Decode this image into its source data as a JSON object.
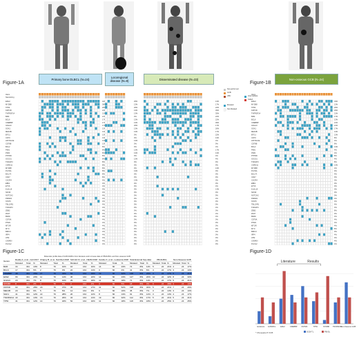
{
  "figure_labels": {
    "a": "Figure-1A",
    "b": "Figure-1B",
    "c": "Figure-1C",
    "d": "Figure-1D"
  },
  "groups": {
    "primary": "Primary bone DLBCL (N=24)",
    "locoregional": "Locoregional disease (N=8)",
    "disseminated": "Disseminated disease (N=23)",
    "nonosseous": "Non-osseous GCB (N=24)"
  },
  "legend_a": {
    "not_performed": "Not performed",
    "gcb": "GCB",
    "abc": "ABC",
    "mutated": "Mutated",
    "not_mutated": "Not Mutated",
    "intermediate": "Intermediate",
    "failed": "Failed"
  },
  "row_top": {
    "hans": "Hans",
    "nanostring": "Nanostring"
  },
  "genes": [
    "EZH2",
    "MYD88",
    "TP53",
    "KMT2D",
    "TNFRSF14",
    "B2M",
    "BCL6",
    "CREBBP",
    "GNA13",
    "SGK1",
    "MEF2B",
    "BTG1",
    "CD70",
    "HIST1H1E",
    "CD79B",
    "BCL2",
    "PIM1",
    "PIM2",
    "PTPRD",
    "SOCS1",
    "TNFAIP3",
    "CARD11",
    "MYD88",
    "PLXNA",
    "BCL7A",
    "CD27",
    "CXCR4",
    "EBF1",
    "ETV6",
    "KLHL14",
    "NFOR",
    "NOTCH2",
    "PRDM1",
    "STAT6",
    "TBL1XR1",
    "TNFAIP3",
    "ZEB2",
    "ZFAT",
    "BRAF",
    "CD79A",
    "PTEN",
    "MTOR",
    "MYC",
    "BIRC3",
    "IRF4",
    "ATM",
    "CXMKN",
    "PLCG2"
  ],
  "pct_a1": [
    "42%",
    "38%",
    "25%",
    "21%",
    "21%",
    "21%",
    "17%",
    "17%",
    "17%",
    "13%",
    "13%",
    "13%",
    "13%",
    "13%",
    "13%",
    "8%",
    "8%",
    "8%",
    "8%",
    "8%",
    "8%",
    "8%",
    "8%",
    "8%",
    "8%",
    "8%",
    "4%",
    "4%",
    "4%",
    "4%",
    "4%",
    "4%",
    "4%",
    "4%",
    "4%",
    "4%",
    "4%",
    "4%",
    "4%",
    "4%",
    "4%",
    "4%",
    "4%",
    "4%",
    "4%",
    "4%",
    "4%",
    "4%"
  ],
  "pct_a2": [
    "25%",
    "13%",
    "25%",
    "13%",
    "13%",
    "0%",
    "13%",
    "13%",
    "25%",
    "13%",
    "13%",
    "0%",
    "0%",
    "13%",
    "0%",
    "0%",
    "13%",
    "13%",
    "0%",
    "13%",
    "0%",
    "0%",
    "0%",
    "13%",
    "0%",
    "0%",
    "13%",
    "0%",
    "0%",
    "0%",
    "0%",
    "0%",
    "0%",
    "0%",
    "0%",
    "0%",
    "0%",
    "0%",
    "0%",
    "0%",
    "0%",
    "0%",
    "0%",
    "0%",
    "0%",
    "0%",
    "0%",
    "0%"
  ],
  "pct_a3": [
    "13%",
    "17%",
    "22%",
    "39%",
    "35%",
    "22%",
    "22%",
    "39%",
    "17%",
    "26%",
    "17%",
    "22%",
    "13%",
    "4%",
    "9%",
    "4%",
    "17%",
    "13%",
    "4%",
    "4%",
    "9%",
    "9%",
    "13%",
    "0%",
    "0%",
    "9%",
    "0%",
    "0%",
    "4%",
    "13%",
    "0%",
    "9%",
    "4%",
    "0%",
    "0%",
    "4%",
    "0%",
    "4%",
    "4%",
    "0%",
    "0%",
    "0%",
    "0%",
    "4%",
    "0%",
    "0%",
    "0%",
    "0%"
  ],
  "pct_b": [
    "33%",
    "13%",
    "25%",
    "29%",
    "21%",
    "17%",
    "13%",
    "21%",
    "21%",
    "17%",
    "13%",
    "13%",
    "8%",
    "4%",
    "8%",
    "13%",
    "4%",
    "4%",
    "8%",
    "4%",
    "8%",
    "13%",
    "4%",
    "0%",
    "4%",
    "0%",
    "0%",
    "0%",
    "0%",
    "0%",
    "0%",
    "0%",
    "4%",
    "4%",
    "4%",
    "4%",
    "8%",
    "0%",
    "4%",
    "4%",
    "4%",
    "4%",
    "8%",
    "0%",
    "4%",
    "0%",
    "4%",
    "4%"
  ],
  "table_c": {
    "caption": "Molecular profile data of GCB-DLBCL from literature and in-house data of PB-DLBCL and Non-osseous GCB",
    "col_groups": [
      "Reddy A, et al., Cell 2017",
      "Chapuy B, et al., Nat Med 2018",
      "Schmitz R, et al., NEJM 2018",
      "Karube K, et al., Leukemia 2018",
      "Total External Seq data",
      "PB-DLBCL",
      "Non-Osseous GCB"
    ],
    "sub_headers": [
      "Mutated",
      "Total",
      "%"
    ],
    "genes_label": "Genes",
    "rows": [
      [
        "B2M",
        "34",
        "331",
        "10%",
        "8",
        "79",
        "10%",
        "16",
        "164",
        "10%",
        "14",
        "60",
        "23%",
        "72",
        "651",
        "11%",
        "5",
        "24",
        "21%",
        "4",
        "24",
        "17%"
      ],
      [
        "BCL6",
        "17",
        "331",
        "5%",
        "2",
        "79",
        "3%",
        "22",
        "164",
        "13%",
        "0",
        "60",
        "0%",
        "41",
        "651",
        "6%",
        "4",
        "24",
        "17%",
        "3",
        "24",
        "13%"
      ],
      [
        "CREBBP",
        "48",
        "331",
        "15%",
        "27",
        "79",
        "34%",
        "54",
        "164",
        "33%",
        "19",
        "60",
        "32%",
        "148",
        "651",
        "23%",
        "4",
        "24",
        "17%",
        "5",
        "24",
        "21%"
      ],
      [
        "EZH2",
        "66",
        "331",
        "20%",
        "11",
        "79",
        "14%",
        "36",
        "164",
        "22%",
        "14",
        "60",
        "23%",
        "127",
        "651",
        "20%",
        "10",
        "24",
        "42%",
        "8",
        "24",
        "33%"
      ],
      [
        "GNA13",
        "23",
        "331",
        "7%",
        "8",
        "79",
        "10%",
        "29",
        "164",
        "18%",
        "11",
        "60",
        "18%",
        "71",
        "651",
        "11%",
        "4",
        "24",
        "17%",
        "5",
        "24",
        "21%"
      ],
      [
        "MYD88",
        "8",
        "331",
        "2%",
        "4",
        "79",
        "5%",
        "3",
        "164",
        "2%",
        "3",
        "60",
        "5%",
        "18",
        "651",
        "3%",
        "9",
        "24",
        "38%",
        "3",
        "24",
        "13%"
      ],
      [
        "KMT2D",
        "93",
        "331",
        "28%",
        "29",
        "79",
        "37%",
        "45",
        "164",
        "27%",
        "31",
        "60",
        "52%",
        "198",
        "651",
        "30%",
        "5",
        "24",
        "21%",
        "7",
        "24",
        "29%"
      ],
      [
        "MEF2B",
        "20",
        "331",
        "6%",
        "5",
        "79",
        "6%",
        "14",
        "164",
        "9%",
        "6",
        "60",
        "10%",
        "45",
        "651",
        "7%",
        "3",
        "24",
        "13%",
        "3",
        "24",
        "13%"
      ],
      [
        "SGK1",
        "41",
        "331",
        "12%",
        "22",
        "79",
        "28%",
        "20",
        "164",
        "12%",
        "8",
        "60",
        "13%",
        "91",
        "651",
        "14%",
        "3",
        "24",
        "13%",
        "4",
        "24",
        "17%"
      ],
      [
        "TNFRSF14",
        "43",
        "331",
        "13%",
        "16",
        "79",
        "20%",
        "34",
        "164",
        "21%",
        "19",
        "60",
        "32%",
        "112",
        "651",
        "17%",
        "5",
        "24",
        "21%",
        "5",
        "24",
        "21%"
      ],
      [
        "TP53",
        "41",
        "331",
        "12%",
        "14",
        "79",
        "18%",
        "52",
        "164",
        "32%",
        "11",
        "60",
        "18%",
        "118",
        "651",
        "18%",
        "6",
        "24",
        "25%",
        "6",
        "24",
        "25%"
      ]
    ]
  },
  "chart_data": {
    "type": "bar",
    "title": "",
    "annotations": [
      "Literature",
      "Results",
      "* Chi-square P<0.05"
    ],
    "categories": [
      "Evidence",
      "GCB-BCL",
      "EZH2",
      "CREBBP",
      "KMT2D",
      "TP53",
      "MYD88",
      "TNFRSF14",
      "Non-Osseous GCB"
    ],
    "series": [
      {
        "name": "GCB-TL",
        "color": "#4472c4",
        "values": [
          10,
          6,
          20,
          23,
          30,
          18,
          3,
          17,
          33
        ]
      },
      {
        "name": "PB-DL",
        "color": "#c0504d",
        "values": [
          21,
          17,
          42,
          17,
          21,
          25,
          38,
          21,
          21
        ]
      }
    ],
    "ylim": [
      0,
      45
    ]
  },
  "colors": {
    "teal": "#3ba3c6",
    "orange": "#e8923a",
    "gray": "#c9c9c9",
    "red": "#d33a2c",
    "green": "#7ba33d",
    "light_blue": "#bfe3f5",
    "light_green": "#d7eab8"
  }
}
